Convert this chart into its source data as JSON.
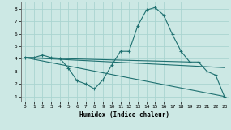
{
  "xlabel": "Humidex (Indice chaleur)",
  "bg_color": "#cce8e4",
  "grid_color": "#aad4d0",
  "line_color": "#1e7070",
  "xlim": [
    -0.5,
    23.5
  ],
  "ylim": [
    0.6,
    8.6
  ],
  "xticks": [
    0,
    1,
    2,
    3,
    4,
    5,
    6,
    7,
    8,
    9,
    10,
    11,
    12,
    13,
    14,
    15,
    16,
    17,
    18,
    19,
    20,
    21,
    22,
    23
  ],
  "yticks": [
    1,
    2,
    3,
    4,
    5,
    6,
    7,
    8
  ],
  "curve_x": [
    0,
    1,
    2,
    3,
    4,
    5,
    6,
    7,
    8,
    9,
    10,
    11,
    12,
    13,
    14,
    15,
    16,
    17,
    18,
    19,
    20,
    21,
    22,
    23
  ],
  "curve_y": [
    4.1,
    4.1,
    4.3,
    4.1,
    4.05,
    3.25,
    2.25,
    2.0,
    1.6,
    2.35,
    3.5,
    4.6,
    4.6,
    6.65,
    7.9,
    8.1,
    7.5,
    5.95,
    4.6,
    3.75,
    3.75,
    3.0,
    2.7,
    1.0
  ],
  "trend1_x": [
    0,
    19
  ],
  "trend1_y": [
    4.1,
    3.75
  ],
  "trend2_x": [
    0,
    23
  ],
  "trend2_y": [
    4.1,
    3.3
  ],
  "trend3_x": [
    0,
    23
  ],
  "trend3_y": [
    4.1,
    1.0
  ]
}
